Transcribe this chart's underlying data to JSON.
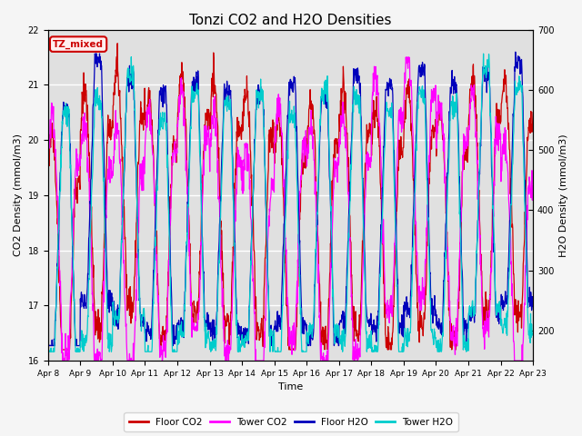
{
  "title": "Tonzi CO2 and H2O Densities",
  "xlabel": "Time",
  "ylabel_left": "CO2 Density (mmol/m3)",
  "ylabel_right": "H2O Density (mmol/m3)",
  "ylim_left": [
    16.0,
    22.0
  ],
  "ylim_right": [
    150,
    700
  ],
  "annotation": "TZ_mixed",
  "annotation_color": "#cc0000",
  "xtick_labels": [
    "Apr 8",
    "Apr 9",
    "Apr 10",
    "Apr 11",
    "Apr 12",
    "Apr 13",
    "Apr 14",
    "Apr 15",
    "Apr 16",
    "Apr 17",
    "Apr 18",
    "Apr 19",
    "Apr 20",
    "Apr 21",
    "Apr 22",
    "Apr 23"
  ],
  "series": {
    "floor_co2": {
      "label": "Floor CO2",
      "color": "#cc0000"
    },
    "tower_co2": {
      "label": "Tower CO2",
      "color": "#ff00ff"
    },
    "floor_h2o": {
      "label": "Floor H2O",
      "color": "#0000bb"
    },
    "tower_h2o": {
      "label": "Tower H2O",
      "color": "#00cccc"
    }
  },
  "days": 15,
  "pts_per_day": 96,
  "background_color": "#e0e0e0",
  "grid_color": "#ffffff",
  "title_fontsize": 11,
  "label_fontsize": 8,
  "tick_fontsize": 7
}
